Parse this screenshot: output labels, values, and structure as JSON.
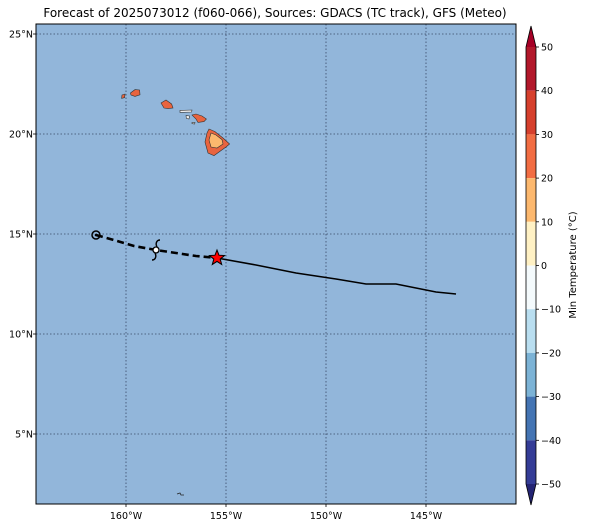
{
  "title": "Forecast of 2025073012 (f060-066), Sources: GDACS (TC track), GFS (Meteo)",
  "map": {
    "extent": {
      "lon_min": -164.5,
      "lon_max": -140.5,
      "lat_min": 1.5,
      "lat_max": 25.5
    },
    "ocean_color": "#92b6da",
    "grid_lat": [
      5,
      10,
      15,
      20,
      25
    ],
    "grid_lon": [
      -160,
      -155,
      -150,
      -145
    ],
    "lat_labels": [
      "5°N",
      "10°N",
      "15°N",
      "20°N",
      "25°N"
    ],
    "lon_labels": [
      "160°W",
      "155°W",
      "150°W",
      "145°W"
    ]
  },
  "islands": [
    {
      "name": "Kauai",
      "color": "#e8643f",
      "points": [
        [
          -159.78,
          22.05
        ],
        [
          -159.55,
          22.22
        ],
        [
          -159.32,
          22.2
        ],
        [
          -159.3,
          21.96
        ],
        [
          -159.55,
          21.88
        ],
        [
          -159.75,
          21.95
        ]
      ]
    },
    {
      "name": "Niihau",
      "color": "#e8643f",
      "points": [
        [
          -160.2,
          21.95
        ],
        [
          -160.05,
          22.0
        ],
        [
          -160.07,
          21.82
        ],
        [
          -160.22,
          21.78
        ]
      ]
    },
    {
      "name": "Oahu",
      "color": "#e8643f",
      "points": [
        [
          -158.25,
          21.55
        ],
        [
          -158.0,
          21.7
        ],
        [
          -157.72,
          21.5
        ],
        [
          -157.65,
          21.3
        ],
        [
          -157.9,
          21.27
        ],
        [
          -158.1,
          21.3
        ]
      ]
    },
    {
      "name": "Molokai",
      "color": "#f0f0f0",
      "points": [
        [
          -157.3,
          21.18
        ],
        [
          -156.7,
          21.2
        ],
        [
          -156.72,
          21.1
        ],
        [
          -157.3,
          21.08
        ]
      ]
    },
    {
      "name": "Lanai",
      "color": "#f0f0f0",
      "points": [
        [
          -157.0,
          20.92
        ],
        [
          -156.82,
          20.9
        ],
        [
          -156.85,
          20.75
        ],
        [
          -156.98,
          20.78
        ]
      ]
    },
    {
      "name": "Kahoolawe",
      "color": "#f0f0f0",
      "points": [
        [
          -156.7,
          20.58
        ],
        [
          -156.55,
          20.58
        ],
        [
          -156.57,
          20.5
        ],
        [
          -156.7,
          20.52
        ]
      ]
    },
    {
      "name": "Maui",
      "color": "#e8643f",
      "points": [
        [
          -156.7,
          20.95
        ],
        [
          -156.5,
          21.0
        ],
        [
          -156.2,
          20.9
        ],
        [
          -155.98,
          20.75
        ],
        [
          -156.1,
          20.62
        ],
        [
          -156.4,
          20.58
        ],
        [
          -156.5,
          20.75
        ]
      ]
    },
    {
      "name": "Hawaii",
      "color": "#e8643f",
      "points": [
        [
          -155.85,
          20.25
        ],
        [
          -155.55,
          20.12
        ],
        [
          -155.15,
          19.8
        ],
        [
          -154.82,
          19.5
        ],
        [
          -155.0,
          19.35
        ],
        [
          -155.6,
          18.92
        ],
        [
          -155.9,
          19.05
        ],
        [
          -156.05,
          19.6
        ],
        [
          -155.95,
          20.05
        ]
      ]
    },
    {
      "name": "Hawaii-interior",
      "color": "#fcb86e",
      "points": [
        [
          -155.75,
          20.05
        ],
        [
          -155.5,
          19.95
        ],
        [
          -155.2,
          19.72
        ],
        [
          -155.15,
          19.5
        ],
        [
          -155.45,
          19.3
        ],
        [
          -155.75,
          19.35
        ],
        [
          -155.85,
          19.7
        ]
      ]
    }
  ],
  "track": {
    "dashed": [
      [
        -161.5,
        14.95
      ],
      [
        -160.6,
        14.7
      ],
      [
        -159.6,
        14.4
      ],
      [
        -158.5,
        14.2
      ],
      [
        -157.5,
        14.05
      ],
      [
        -156.5,
        13.9
      ],
      [
        -155.45,
        13.8
      ]
    ],
    "solid": [
      [
        -155.45,
        13.8
      ],
      [
        -153.5,
        13.45
      ],
      [
        -151.5,
        13.05
      ],
      [
        -149.5,
        12.75
      ],
      [
        -148.0,
        12.5
      ],
      [
        -146.5,
        12.5
      ],
      [
        -145.0,
        12.2
      ],
      [
        -144.5,
        12.1
      ],
      [
        -143.5,
        12.0
      ]
    ],
    "circle_marker": [
      -161.5,
      14.95
    ],
    "storm_symbol": [
      -158.5,
      14.2
    ],
    "current_position": [
      -155.45,
      13.8
    ],
    "star_color": "#ff0000"
  },
  "colorbar": {
    "label": "Min Temperature (°C)",
    "min": -55,
    "max": 55,
    "tick_values": [
      50,
      40,
      30,
      20,
      10,
      0,
      -10,
      -20,
      -30,
      -40,
      -50
    ],
    "tick_labels": [
      "50",
      "40",
      "30",
      "20",
      "10",
      "0",
      "−10",
      "−20",
      "−30",
      "−40",
      "−50"
    ],
    "bins": [
      {
        "from": 50,
        "to": 55,
        "color": "#a50026"
      },
      {
        "from": 40,
        "to": 50,
        "color": "#b2182b"
      },
      {
        "from": 30,
        "to": 40,
        "color": "#d6402d"
      },
      {
        "from": 20,
        "to": 30,
        "color": "#f26d43"
      },
      {
        "from": 10,
        "to": 20,
        "color": "#fcb86e"
      },
      {
        "from": 0,
        "to": 10,
        "color": "#fff1c4"
      },
      {
        "from": -10,
        "to": 0,
        "color": "#f4fafc"
      },
      {
        "from": -20,
        "to": -10,
        "color": "#b9def0"
      },
      {
        "from": -30,
        "to": -20,
        "color": "#7cb3d6"
      },
      {
        "from": -40,
        "to": -30,
        "color": "#4474b3"
      },
      {
        "from": -50,
        "to": -40,
        "color": "#343c96"
      },
      {
        "from": -55,
        "to": -50,
        "color": "#242473"
      }
    ]
  }
}
